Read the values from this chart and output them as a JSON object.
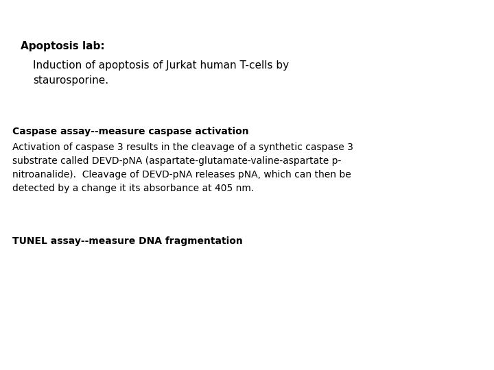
{
  "background_color": "#ffffff",
  "title_bold": "Apoptosis lab:",
  "title_indent": "Induction of apoptosis of Jurkat human T-cells by\nstaurosporine.",
  "section1_bold": "Caspase assay--measure caspase activation",
  "section1_body": "Activation of caspase 3 results in the cleavage of a synthetic caspase 3\nsubstrate called DEVD-pNA (aspartate-glutamate-valine-aspartate p-\nnitroanalide).  Cleavage of DEVD-pNA releases pNA, which can then be\ndetected by a change it its absorbance at 405 nm.",
  "section2_bold": "TUNEL assay--measure DNA fragmentation",
  "font_family": "DejaVu Sans",
  "title_fontsize": 11,
  "body_fontsize": 10,
  "text_color": "#000000"
}
